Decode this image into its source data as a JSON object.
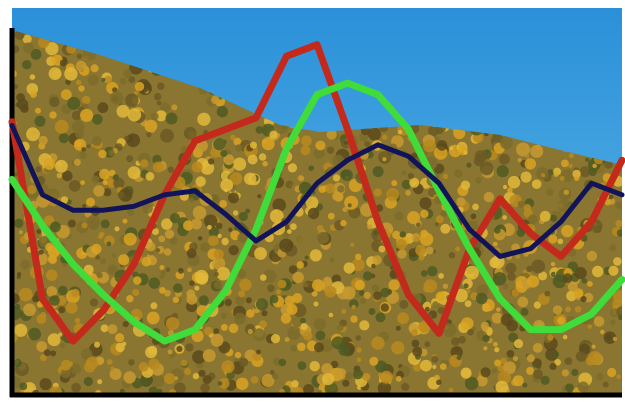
{
  "chart_data": {
    "type": "line",
    "x": [
      0,
      5,
      10,
      15,
      20,
      25,
      30,
      35,
      40,
      45,
      50,
      55,
      60,
      65,
      70,
      75,
      80,
      85,
      90,
      95,
      100
    ],
    "xlim": [
      0,
      100
    ],
    "ylim": [
      0,
      100
    ],
    "series": [
      {
        "color": "#c42a1c",
        "values": [
          71,
          25,
          14,
          22,
          34,
          52,
          66,
          69,
          72,
          88,
          91,
          69,
          45,
          26,
          16,
          38,
          51,
          42,
          36,
          45,
          61
        ]
      },
      {
        "color": "#3fdc3a",
        "values": [
          56,
          44,
          34,
          26,
          19,
          14,
          17,
          27,
          43,
          64,
          78,
          81,
          78,
          69,
          53,
          38,
          25,
          17,
          17,
          21,
          30
        ]
      },
      {
        "color": "#12145a",
        "values": [
          70,
          52,
          48,
          48,
          49,
          52,
          53,
          47,
          40,
          45,
          55,
          61,
          65,
          62,
          55,
          43,
          36,
          38,
          45,
          55,
          52
        ]
      }
    ]
  }
}
